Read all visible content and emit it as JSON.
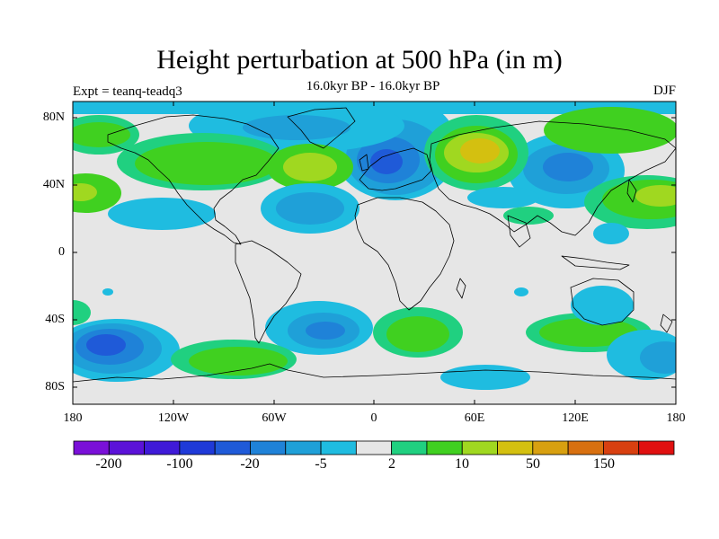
{
  "map": {
    "title": "Height perturbation at 500 hPa (in m)",
    "subtitle": "16.0kyr BP - 16.0kyr BP",
    "experiment": "Expt = teanq-teadq3",
    "season": "DJF",
    "lat_labels": [
      "80N",
      "40N",
      "0",
      "40S",
      "80S"
    ],
    "lon_labels": [
      "180",
      "120W",
      "60W",
      "0",
      "60E",
      "120E",
      "180"
    ]
  },
  "colorbar": {
    "colors": [
      "#7a10d8",
      "#5b12d8",
      "#3f1ad8",
      "#1f3ad8",
      "#1f5ad8",
      "#1f82d8",
      "#1fa0d8",
      "#1fbce0",
      "#e6e6e6",
      "#20d080",
      "#40d020",
      "#a0d820",
      "#d4c010",
      "#d8a010",
      "#d87010",
      "#d84010",
      "#e01010"
    ],
    "labels": [
      "-200",
      "-100",
      "-20",
      "-5",
      "2",
      "10",
      "50",
      "150"
    ]
  },
  "palette": {
    "neutral": "#e6e6e6",
    "ocean_light_blue": "#1fbce0",
    "blue_mid": "#1fa0d8",
    "blue_deep": "#1f82d8",
    "blue_darker": "#1f5ad8",
    "blue_core": "#1f3ad8",
    "green_teal": "#20d080",
    "green": "#40d020",
    "yellow_green": "#a0d820",
    "yellow": "#d4c010",
    "coastline": "#000000"
  }
}
